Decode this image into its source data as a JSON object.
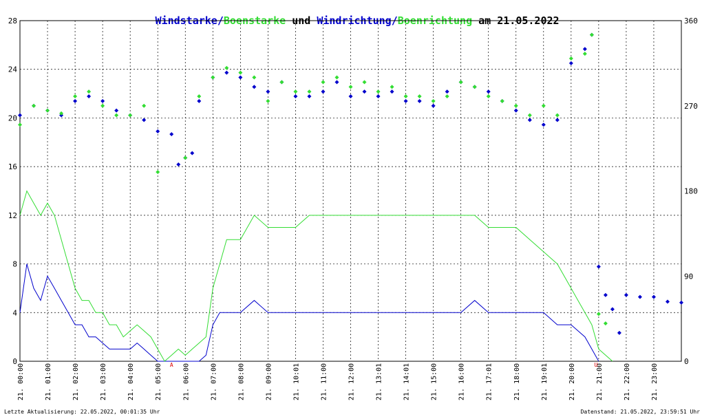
{
  "title_parts": [
    {
      "text": "Windstarke",
      "color": "#0000cc"
    },
    {
      "text": "/",
      "color": "#0000cc"
    },
    {
      "text": "Boenstarke",
      "color": "#33dd33"
    },
    {
      "text": " und ",
      "color": "#000000"
    },
    {
      "text": "Windrichtung",
      "color": "#0000cc"
    },
    {
      "text": "/",
      "color": "#0000cc"
    },
    {
      "text": "Boenrichtung",
      "color": "#33dd33"
    },
    {
      "text": " am 21.05.2022",
      "color": "#000000"
    }
  ],
  "footer": {
    "left": "Letzte Aktualisierung: 22.05.2022, 00:01:35 Uhr",
    "right": "Datenstand: 21.05.2022, 23:59:51 Uhr"
  },
  "colors": {
    "wind": "#0000cc",
    "gust": "#33dd33",
    "grid": "#000000",
    "marker": "#dd0000"
  },
  "chart_data": {
    "type": "line",
    "title": "Windstarke/Boenstarke und Windrichtung/Boenrichtung am 21.05.2022",
    "x_labels": [
      "21. 00:00",
      "21. 01:00",
      "21. 02:00",
      "21. 03:00",
      "21. 04:00",
      "21. 05:00",
      "21. 06:00",
      "21. 07:00",
      "21. 08:00",
      "21. 09:00",
      "21. 10:01",
      "21. 11:00",
      "21. 12:00",
      "21. 13:01",
      "21. 14:01",
      "21. 15:00",
      "21. 16:00",
      "21. 17:01",
      "21. 18:00",
      "21. 19:01",
      "21. 20:00",
      "21. 21:00",
      "21. 22:00",
      "21. 23:00"
    ],
    "x_range_hours": [
      0,
      24
    ],
    "y_left": {
      "range": [
        0,
        28
      ],
      "ticks": [
        "0",
        "4",
        "8",
        "12",
        "16",
        "20",
        "24",
        "28"
      ]
    },
    "y_right": {
      "range": [
        0,
        360
      ],
      "ticks": [
        "0",
        "90",
        "180",
        "270",
        "360"
      ]
    },
    "annotations": [
      {
        "text": "A",
        "hour": 5.5
      },
      {
        "text": "U",
        "hour": 20.9
      }
    ],
    "grid": true,
    "series": [
      {
        "name": "Windstarke",
        "axis": "left",
        "style": "line",
        "color": "#0000cc",
        "points": [
          [
            0,
            4
          ],
          [
            0.25,
            8
          ],
          [
            0.5,
            6
          ],
          [
            0.75,
            5
          ],
          [
            1,
            7
          ],
          [
            1.25,
            6
          ],
          [
            1.5,
            5
          ],
          [
            1.75,
            4
          ],
          [
            2,
            3
          ],
          [
            2.25,
            3
          ],
          [
            2.5,
            2
          ],
          [
            2.75,
            2
          ],
          [
            3,
            1.5
          ],
          [
            3.25,
            1
          ],
          [
            3.5,
            1
          ],
          [
            3.75,
            1
          ],
          [
            4,
            1
          ],
          [
            4.25,
            1.5
          ],
          [
            4.5,
            1
          ],
          [
            4.75,
            0.5
          ],
          [
            5,
            0
          ],
          [
            5.5,
            0
          ],
          [
            6,
            0
          ],
          [
            6.5,
            0
          ],
          [
            6.75,
            0.5
          ],
          [
            7,
            3
          ],
          [
            7.25,
            4
          ],
          [
            7.5,
            4
          ],
          [
            8,
            4
          ],
          [
            8.5,
            5
          ],
          [
            9,
            4
          ],
          [
            9.5,
            4
          ],
          [
            10,
            4
          ],
          [
            10.5,
            4
          ],
          [
            11,
            4
          ],
          [
            11.5,
            4
          ],
          [
            12,
            4
          ],
          [
            12.5,
            4
          ],
          [
            13,
            4
          ],
          [
            13.5,
            4
          ],
          [
            14,
            4
          ],
          [
            14.5,
            4
          ],
          [
            15,
            4
          ],
          [
            15.5,
            4
          ],
          [
            16,
            4
          ],
          [
            16.5,
            5
          ],
          [
            17,
            4
          ],
          [
            17.5,
            4
          ],
          [
            18,
            4
          ],
          [
            18.5,
            4
          ],
          [
            19,
            4
          ],
          [
            19.5,
            3
          ],
          [
            20,
            3
          ],
          [
            20.25,
            2.5
          ],
          [
            20.5,
            2
          ],
          [
            20.75,
            1
          ],
          [
            21,
            0
          ]
        ]
      },
      {
        "name": "Boenstarke",
        "axis": "left",
        "style": "line",
        "color": "#33dd33",
        "points": [
          [
            0,
            12
          ],
          [
            0.25,
            14
          ],
          [
            0.5,
            13
          ],
          [
            0.75,
            12
          ],
          [
            1,
            13
          ],
          [
            1.25,
            12
          ],
          [
            1.5,
            10
          ],
          [
            1.75,
            8
          ],
          [
            2,
            6
          ],
          [
            2.25,
            5
          ],
          [
            2.5,
            5
          ],
          [
            2.75,
            4
          ],
          [
            3,
            4
          ],
          [
            3.25,
            3
          ],
          [
            3.5,
            3
          ],
          [
            3.75,
            2
          ],
          [
            4,
            2.5
          ],
          [
            4.25,
            3
          ],
          [
            4.5,
            2.5
          ],
          [
            4.75,
            2
          ],
          [
            5,
            1
          ],
          [
            5.25,
            0
          ],
          [
            5.5,
            0.5
          ],
          [
            5.75,
            1
          ],
          [
            6,
            0.5
          ],
          [
            6.25,
            1
          ],
          [
            6.5,
            1.5
          ],
          [
            6.75,
            2
          ],
          [
            7,
            6
          ],
          [
            7.25,
            8
          ],
          [
            7.5,
            10
          ],
          [
            8,
            10
          ],
          [
            8.5,
            12
          ],
          [
            9,
            11
          ],
          [
            9.5,
            11
          ],
          [
            10,
            11
          ],
          [
            10.5,
            12
          ],
          [
            11,
            12
          ],
          [
            11.5,
            12
          ],
          [
            12,
            12
          ],
          [
            12.5,
            12
          ],
          [
            13,
            12
          ],
          [
            13.5,
            12
          ],
          [
            14,
            12
          ],
          [
            14.5,
            12
          ],
          [
            15,
            12
          ],
          [
            15.5,
            12
          ],
          [
            16,
            12
          ],
          [
            16.5,
            12
          ],
          [
            17,
            11
          ],
          [
            17.5,
            11
          ],
          [
            18,
            11
          ],
          [
            18.5,
            10
          ],
          [
            19,
            9
          ],
          [
            19.5,
            8
          ],
          [
            20,
            6
          ],
          [
            20.25,
            5
          ],
          [
            20.5,
            4
          ],
          [
            20.75,
            3
          ],
          [
            21,
            1
          ],
          [
            21.5,
            0
          ]
        ]
      },
      {
        "name": "Windrichtung",
        "axis": "right",
        "style": "diamond",
        "color": "#0000cc",
        "points": [
          [
            0,
            260
          ],
          [
            0.5,
            270
          ],
          [
            1,
            265
          ],
          [
            1.5,
            260
          ],
          [
            2,
            275
          ],
          [
            2.5,
            280
          ],
          [
            3,
            275
          ],
          [
            3.5,
            265
          ],
          [
            4,
            260
          ],
          [
            4.5,
            255
          ],
          [
            5,
            243
          ],
          [
            5.5,
            240
          ],
          [
            5.75,
            208
          ],
          [
            6,
            215
          ],
          [
            6.25,
            220
          ],
          [
            6.5,
            275
          ],
          [
            7,
            300
          ],
          [
            7.5,
            305
          ],
          [
            8,
            300
          ],
          [
            8.5,
            290
          ],
          [
            9,
            285
          ],
          [
            9.5,
            295
          ],
          [
            10,
            280
          ],
          [
            10.5,
            280
          ],
          [
            11,
            285
          ],
          [
            11.5,
            295
          ],
          [
            12,
            280
          ],
          [
            12.5,
            285
          ],
          [
            13,
            280
          ],
          [
            13.5,
            285
          ],
          [
            14,
            275
          ],
          [
            14.5,
            275
          ],
          [
            15,
            270
          ],
          [
            15.5,
            285
          ],
          [
            16,
            295
          ],
          [
            16.5,
            290
          ],
          [
            17,
            285
          ],
          [
            17.5,
            275
          ],
          [
            18,
            265
          ],
          [
            18.5,
            255
          ],
          [
            19,
            250
          ],
          [
            19.5,
            255
          ],
          [
            20,
            315
          ],
          [
            20.5,
            330
          ],
          [
            20.75,
            345
          ],
          [
            21,
            100
          ],
          [
            21.25,
            70
          ],
          [
            21.5,
            55
          ],
          [
            21.75,
            30
          ],
          [
            22,
            70
          ],
          [
            22.5,
            68
          ],
          [
            23,
            68
          ],
          [
            23.5,
            63
          ],
          [
            24,
            62
          ]
        ]
      },
      {
        "name": "Boenrichtung",
        "axis": "right",
        "style": "diamond",
        "color": "#33dd33",
        "points": [
          [
            0,
            250
          ],
          [
            0.5,
            270
          ],
          [
            1,
            265
          ],
          [
            1.5,
            262
          ],
          [
            2,
            280
          ],
          [
            2.5,
            285
          ],
          [
            3,
            270
          ],
          [
            3.5,
            260
          ],
          [
            4,
            260
          ],
          [
            4.5,
            270
          ],
          [
            5,
            200
          ],
          [
            6,
            215
          ],
          [
            6.5,
            280
          ],
          [
            7,
            300
          ],
          [
            7.5,
            310
          ],
          [
            8,
            305
          ],
          [
            8.5,
            300
          ],
          [
            9,
            275
          ],
          [
            9.5,
            295
          ],
          [
            10,
            285
          ],
          [
            10.5,
            285
          ],
          [
            11,
            295
          ],
          [
            11.5,
            300
          ],
          [
            12,
            290
          ],
          [
            12.5,
            295
          ],
          [
            13,
            285
          ],
          [
            13.5,
            290
          ],
          [
            14,
            280
          ],
          [
            14.5,
            280
          ],
          [
            15,
            275
          ],
          [
            15.5,
            280
          ],
          [
            16,
            295
          ],
          [
            16.5,
            290
          ],
          [
            17,
            280
          ],
          [
            17.5,
            275
          ],
          [
            18,
            270
          ],
          [
            18.5,
            260
          ],
          [
            19,
            270
          ],
          [
            19.5,
            260
          ],
          [
            20,
            320
          ],
          [
            20.5,
            325
          ],
          [
            20.75,
            345
          ],
          [
            21,
            50
          ],
          [
            21.25,
            40
          ]
        ]
      }
    ]
  }
}
